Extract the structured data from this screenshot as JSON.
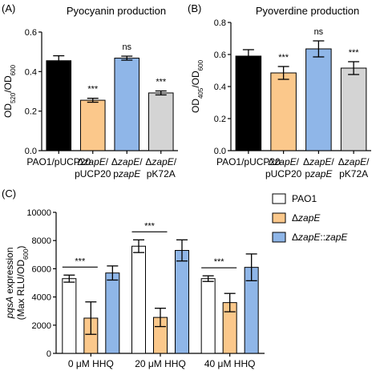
{
  "chart_data": [
    {
      "panel": "(A)",
      "type": "bar",
      "title": "Pyocyanin production",
      "ylabel_parts": [
        {
          "t": "OD"
        },
        {
          "t": "520",
          "sub": true
        },
        {
          "t": "/OD"
        },
        {
          "t": "600",
          "sub": true
        }
      ],
      "ylim": [
        0,
        0.6
      ],
      "yticks": [
        "0.0",
        "0.2",
        "0.4",
        "0.6"
      ],
      "categories": [
        [
          {
            "t": "PAO1/"
          },
          {
            "t": "pUCP20"
          }
        ],
        [
          {
            "t": "Δ"
          },
          {
            "t": "zapE",
            "i": true
          },
          {
            "t": "/"
          },
          {
            "t": "|"
          },
          {
            "t": "pUCP20"
          }
        ],
        [
          {
            "t": "Δ"
          },
          {
            "t": "zapE",
            "i": true
          },
          {
            "t": "/"
          },
          {
            "t": "|"
          },
          {
            "t": "pzapE",
            "ip": 1
          }
        ],
        [
          {
            "t": "Δ"
          },
          {
            "t": "zapE",
            "i": true
          },
          {
            "t": "/"
          },
          {
            "t": "|"
          },
          {
            "t": "pK72A"
          }
        ]
      ],
      "values": [
        0.455,
        0.255,
        0.468,
        0.292
      ],
      "errors": [
        0.025,
        0.01,
        0.01,
        0.01
      ],
      "colors": [
        "#000000",
        "#fbc88b",
        "#8fb6e8",
        "#d4d4d4"
      ],
      "significance": [
        "",
        "***",
        "ns",
        "***"
      ]
    },
    {
      "panel": "(B)",
      "type": "bar",
      "title": "Pyoverdine production",
      "ylabel_parts": [
        {
          "t": "OD"
        },
        {
          "t": "405",
          "sub": true
        },
        {
          "t": "/OD"
        },
        {
          "t": "600",
          "sub": true
        }
      ],
      "ylim": [
        0,
        0.8
      ],
      "yticks": [
        "0.0",
        "0.2",
        "0.4",
        "0.6",
        "0.8"
      ],
      "categories": [
        [
          {
            "t": "PAO1/"
          },
          {
            "t": "pUCP20"
          }
        ],
        [
          {
            "t": "Δ"
          },
          {
            "t": "zapE",
            "i": true
          },
          {
            "t": "/"
          },
          {
            "t": "|"
          },
          {
            "t": "pUCP20"
          }
        ],
        [
          {
            "t": "Δ"
          },
          {
            "t": "zapE",
            "i": true
          },
          {
            "t": "/"
          },
          {
            "t": "|"
          },
          {
            "t": "pzapE",
            "ip": 1
          }
        ],
        [
          {
            "t": "Δ"
          },
          {
            "t": "zapE",
            "i": true
          },
          {
            "t": "/"
          },
          {
            "t": "|"
          },
          {
            "t": "pK72A"
          }
        ]
      ],
      "values": [
        0.59,
        0.485,
        0.635,
        0.515
      ],
      "errors": [
        0.04,
        0.04,
        0.05,
        0.04
      ],
      "colors": [
        "#000000",
        "#fbc88b",
        "#8fb6e8",
        "#d4d4d4"
      ],
      "significance": [
        "",
        "***",
        "ns",
        "***"
      ]
    },
    {
      "panel": "(C)",
      "type": "bar",
      "ylabel_line1": [
        {
          "t": "pqsA",
          "i": true
        },
        {
          "t": " expression"
        }
      ],
      "ylabel_line2": [
        {
          "t": "(Max RLU/OD"
        },
        {
          "t": "600",
          "sub": true
        },
        {
          "t": ")"
        }
      ],
      "ylim": [
        0,
        10000
      ],
      "yticks": [
        "0",
        "2000",
        "4000",
        "6000",
        "8000",
        "10000"
      ],
      "categories": [
        "0 μM HHQ",
        "20 μM HHQ",
        "40 μM HHQ"
      ],
      "series": [
        {
          "name_parts": [
            {
              "t": "PAO1"
            }
          ],
          "color": "#ffffff",
          "values": [
            5300,
            7600,
            5300
          ],
          "errors": [
            250,
            450,
            200
          ]
        },
        {
          "name_parts": [
            {
              "t": "Δ"
            },
            {
              "t": "zapE",
              "i": true
            }
          ],
          "color": "#fbc88b",
          "values": [
            2500,
            2550,
            3600
          ],
          "errors": [
            1150,
            650,
            650
          ]
        },
        {
          "name_parts": [
            {
              "t": "Δ"
            },
            {
              "t": "zapE",
              "i": true
            },
            {
              "t": "::"
            },
            {
              "t": "zapE",
              "i": true
            }
          ],
          "color": "#8fb6e8",
          "values": [
            5700,
            7300,
            6100
          ],
          "errors": [
            500,
            750,
            950
          ]
        }
      ],
      "significance": [
        "***",
        "***",
        "***"
      ]
    }
  ]
}
